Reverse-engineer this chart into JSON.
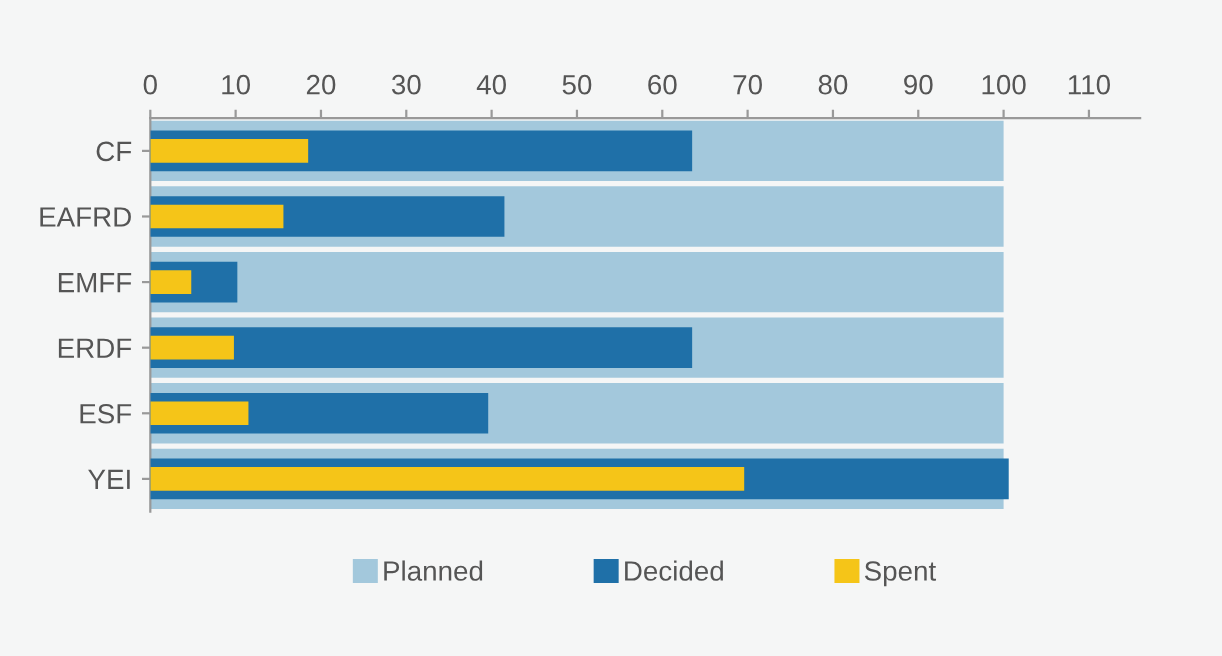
{
  "chart_data": {
    "type": "bar",
    "orientation": "horizontal",
    "categories": [
      "CF",
      "EAFRD",
      "EMFF",
      "ERDF",
      "ESF",
      "YEI"
    ],
    "series": [
      {
        "name": "Planned",
        "color": "#a3c8dc",
        "values": [
          100,
          100,
          100,
          100,
          100,
          100
        ]
      },
      {
        "name": "Decided",
        "color": "#1f70a8",
        "values": [
          63.5,
          41.5,
          10.2,
          63.5,
          39.6,
          100.6
        ]
      },
      {
        "name": "Spent",
        "color": "#f5c518",
        "values": [
          18.5,
          15.6,
          4.8,
          9.8,
          11.5,
          69.6
        ]
      }
    ],
    "xlim": [
      0,
      116
    ],
    "xticks": [
      0,
      10,
      20,
      30,
      40,
      50,
      60,
      70,
      80,
      90,
      100,
      110
    ],
    "grid": false,
    "legend": "bottom"
  }
}
